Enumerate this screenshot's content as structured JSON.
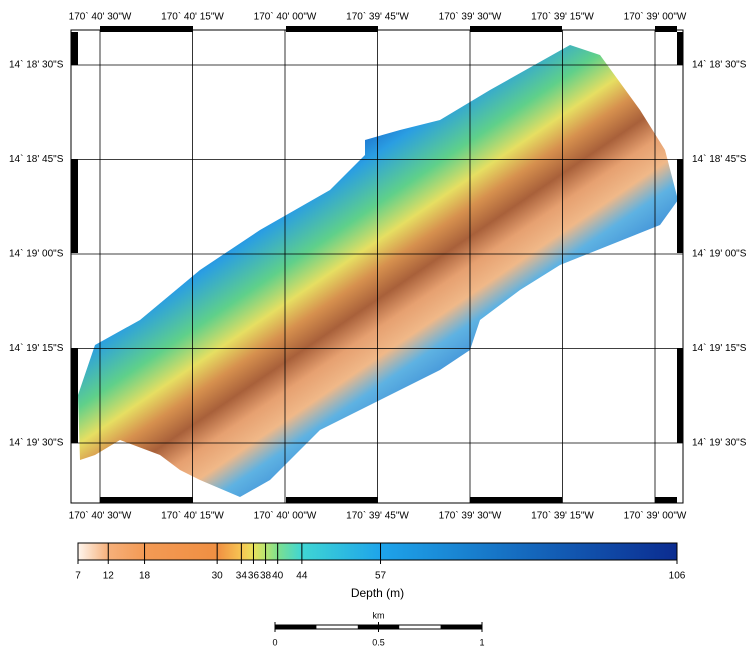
{
  "map": {
    "longitude_labels": [
      "170` 40' 30\"W",
      "170` 40' 15\"W",
      "170` 40' 00\"W",
      "170` 39' 45\"W",
      "170` 39' 30\"W",
      "170` 39' 15\"W",
      "170` 39' 00\"W"
    ],
    "latitude_labels": [
      "14` 18' 30\"S",
      "14` 18' 45\"S",
      "14` 19' 00\"S",
      "14` 19' 15\"S",
      "14` 19' 30\"S"
    ]
  },
  "colorbar": {
    "label": "Depth (m)",
    "lim": [
      7,
      106
    ],
    "ticks": [
      7,
      12,
      18,
      30,
      34,
      36,
      38,
      40,
      44,
      57,
      106
    ],
    "colors": [
      "#fff6ee",
      "#f6b07a",
      "#f39a55",
      "#f08f42",
      "#f7c553",
      "#e9e25c",
      "#b8e472",
      "#7de08e",
      "#3fd6d4",
      "#1ea4ea",
      "#0b2c90"
    ]
  },
  "scalebar": {
    "label": "km",
    "lim": [
      0,
      1
    ],
    "ticks": [
      0,
      0.5,
      1
    ]
  }
}
